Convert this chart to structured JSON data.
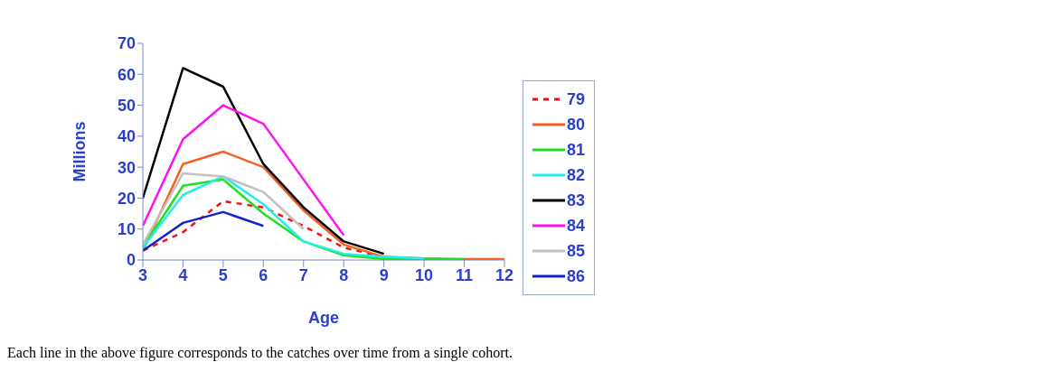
{
  "chart_data": {
    "type": "line",
    "xlabel": "Age",
    "ylabel": "Millions",
    "x": [
      3,
      4,
      5,
      6,
      7,
      8,
      9,
      10,
      11,
      12
    ],
    "xlim": [
      3,
      12
    ],
    "xticks": [
      3,
      4,
      5,
      6,
      7,
      8,
      9,
      10,
      11,
      12
    ],
    "ylim": [
      0,
      70
    ],
    "yticks": [
      0,
      10,
      20,
      30,
      40,
      50,
      60,
      70
    ],
    "grid": false,
    "legend": "right",
    "marker": "none",
    "series": [
      {
        "name": "79",
        "color": "#ee1111",
        "line_style": "dashed",
        "values": [
          3,
          9,
          19,
          17,
          11,
          4,
          1,
          null,
          null,
          null
        ]
      },
      {
        "name": "80",
        "color": "#f06020",
        "values": [
          3,
          31,
          35,
          30,
          16,
          5,
          1,
          0.5,
          0.3,
          0.3
        ]
      },
      {
        "name": "81",
        "color": "#22dd22",
        "values": [
          4,
          24,
          26,
          15,
          6,
          1.5,
          0.3,
          0.2,
          0.3,
          null
        ]
      },
      {
        "name": "82",
        "color": "#22eeee",
        "values": [
          4,
          21,
          27,
          18,
          6,
          2,
          1,
          0.5,
          null,
          null
        ]
      },
      {
        "name": "83",
        "color": "#000000",
        "values": [
          20,
          62,
          56,
          31,
          17,
          6,
          2,
          null,
          null,
          null
        ]
      },
      {
        "name": "84",
        "color": "#ff11ee",
        "values": [
          11,
          39,
          50,
          44,
          26,
          8,
          null,
          null,
          null,
          null
        ]
      },
      {
        "name": "85",
        "color": "#c0c0c0",
        "values": [
          5,
          28,
          27,
          22,
          10,
          null,
          null,
          null,
          null,
          null
        ]
      },
      {
        "name": "86",
        "color": "#1122cc",
        "values": [
          3,
          12,
          15.5,
          11,
          null,
          null,
          null,
          null,
          null,
          null
        ]
      }
    ],
    "annotations": [
      "Each line in the above figure corresponds to the catches over time from a single cohort."
    ]
  }
}
